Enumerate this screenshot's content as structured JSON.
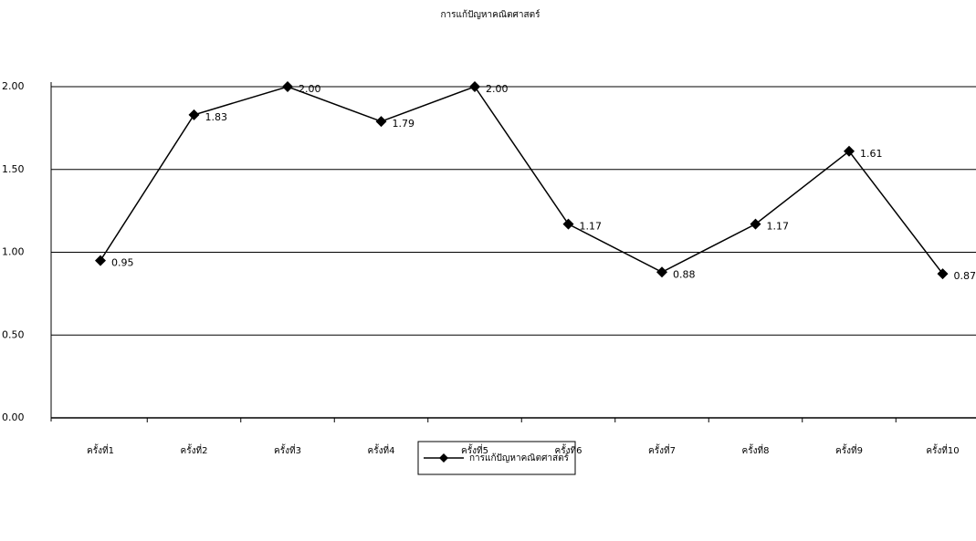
{
  "chart_data": {
    "type": "line",
    "title": "การแก้ปัญหาคณิตศาสตร์",
    "categories": [
      "ครั้งที่1",
      "ครั้งที่2",
      "ครั้งที่3",
      "ครั้งที่4",
      "ครั้งที่5",
      "ครั้งที่6",
      "ครั้งที่7",
      "ครั้งที่8",
      "ครั้งที่9",
      "ครั้งที่10"
    ],
    "series": [
      {
        "name": "การแก้ปัญหาคณิตศาสตร์",
        "color": "#000000",
        "values": [
          0.95,
          1.83,
          2.0,
          1.79,
          2.0,
          1.17,
          0.88,
          1.17,
          1.61,
          0.87
        ],
        "value_labels": [
          "0.95",
          "1.83",
          "2.00",
          "1.79",
          "2.00",
          "1.17",
          "0.88",
          "1.17",
          "1.61",
          "0.87"
        ]
      }
    ],
    "ylim": [
      0,
      2
    ],
    "yticks": [
      {
        "value": 0,
        "label": "0.00"
      },
      {
        "value": 0.5,
        "label": "0.50"
      },
      {
        "value": 1,
        "label": "1.00"
      },
      {
        "value": 1.5,
        "label": "1.50"
      },
      {
        "value": 2,
        "label": "2.00"
      }
    ],
    "grid": true
  }
}
